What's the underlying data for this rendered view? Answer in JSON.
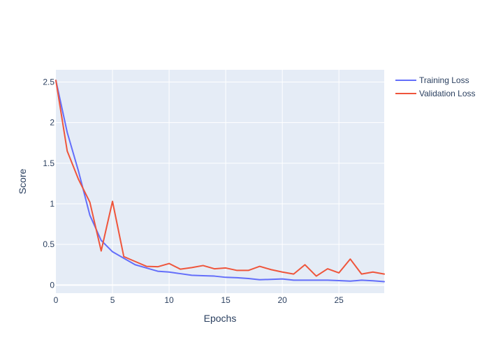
{
  "chart_data": {
    "type": "line",
    "title": "",
    "xlabel": "Epochs",
    "ylabel": "Score",
    "xlim": [
      0,
      29
    ],
    "ylim": [
      -0.1,
      2.65
    ],
    "x_ticks": [
      0,
      5,
      10,
      15,
      20,
      25
    ],
    "y_ticks": [
      0,
      0.5,
      1,
      1.5,
      2,
      2.5
    ],
    "x_tick_labels": [
      "0",
      "5",
      "10",
      "15",
      "20",
      "25"
    ],
    "y_tick_labels": [
      "0",
      "0.5",
      "1",
      "1.5",
      "2",
      "2.5"
    ],
    "grid": true,
    "legend_position": "top-right",
    "x": [
      0,
      1,
      2,
      3,
      4,
      5,
      6,
      7,
      8,
      9,
      10,
      11,
      12,
      13,
      14,
      15,
      16,
      17,
      18,
      19,
      20,
      21,
      22,
      23,
      24,
      25,
      26,
      27,
      28,
      29
    ],
    "series": [
      {
        "name": "Training Loss",
        "color": "#636efa",
        "values": [
          2.52,
          1.88,
          1.4,
          0.86,
          0.55,
          0.41,
          0.33,
          0.25,
          0.21,
          0.17,
          0.16,
          0.14,
          0.12,
          0.115,
          0.11,
          0.095,
          0.09,
          0.08,
          0.065,
          0.07,
          0.075,
          0.06,
          0.06,
          0.06,
          0.06,
          0.055,
          0.048,
          0.06,
          0.052,
          0.042
        ]
      },
      {
        "name": "Validation Loss",
        "color": "#ef553b",
        "values": [
          2.52,
          1.65,
          1.3,
          1.02,
          0.42,
          1.03,
          0.35,
          0.29,
          0.23,
          0.225,
          0.265,
          0.195,
          0.215,
          0.24,
          0.2,
          0.21,
          0.18,
          0.18,
          0.23,
          0.19,
          0.16,
          0.135,
          0.25,
          0.11,
          0.2,
          0.15,
          0.32,
          0.135,
          0.16,
          0.135
        ]
      }
    ]
  }
}
